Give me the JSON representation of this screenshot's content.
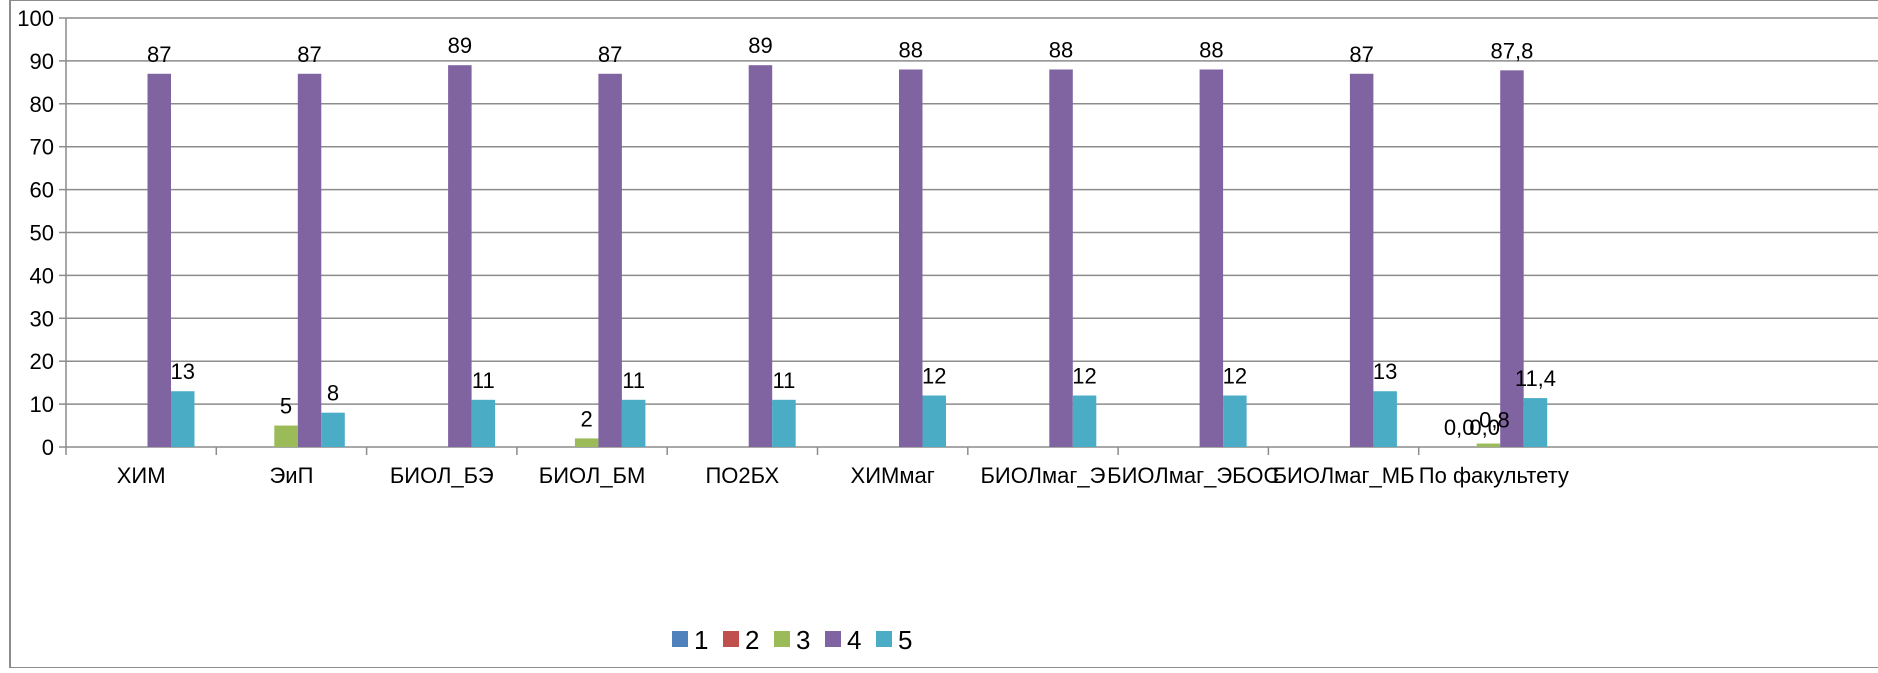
{
  "chart_data": {
    "type": "bar",
    "title": "",
    "xlabel": "",
    "ylabel": "",
    "ylim": [
      0,
      100
    ],
    "yticks": [
      0,
      10,
      20,
      30,
      40,
      50,
      60,
      70,
      80,
      90,
      100
    ],
    "grid": true,
    "legend_position": "bottom",
    "categories": [
      "ХИМ",
      "ЭиП",
      "БИОЛ_БЭ",
      "БИОЛ_БМ",
      "ПО2БХ",
      "ХИМмаг",
      "БИОЛмаг_Э",
      "БИОЛмаг_ЭБОС",
      "БИОЛмаг_МБ",
      "По факультету"
    ],
    "series": [
      {
        "name": "1",
        "color": "#4f81bd",
        "values": [
          0,
          0,
          0,
          0,
          0,
          0,
          0,
          0,
          0,
          0
        ],
        "labels": [
          null,
          null,
          null,
          null,
          null,
          null,
          null,
          null,
          null,
          "0,0"
        ]
      },
      {
        "name": "2",
        "color": "#c0504d",
        "values": [
          0,
          0,
          0,
          0,
          0,
          0,
          0,
          0,
          0,
          0
        ],
        "labels": [
          null,
          null,
          null,
          null,
          null,
          null,
          null,
          null,
          null,
          "0,0"
        ]
      },
      {
        "name": "3",
        "color": "#9bbb59",
        "values": [
          0,
          5,
          0,
          2,
          0,
          0,
          0,
          0,
          0,
          0.8
        ],
        "labels": [
          null,
          "5",
          null,
          "2",
          null,
          null,
          null,
          null,
          null,
          "0,8"
        ]
      },
      {
        "name": "4",
        "color": "#8064a2",
        "values": [
          87,
          87,
          89,
          87,
          89,
          88,
          88,
          88,
          87,
          87.8
        ],
        "labels": [
          "87",
          "87",
          "89",
          "87",
          "89",
          "88",
          "88",
          "88",
          "87",
          "87,8"
        ]
      },
      {
        "name": "5",
        "color": "#4bacc6",
        "values": [
          13,
          8,
          11,
          11,
          11,
          12,
          12,
          12,
          13,
          11.4
        ],
        "labels": [
          "13",
          "8",
          "11",
          "11",
          "11",
          "12",
          "12",
          "12",
          "13",
          "11,4"
        ]
      }
    ]
  }
}
